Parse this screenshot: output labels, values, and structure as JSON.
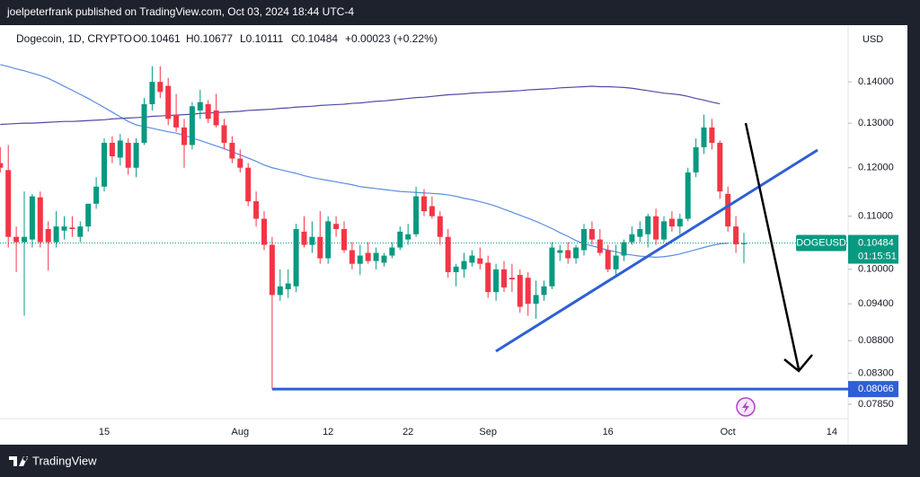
{
  "publisher": "joelpeterfrank published on TradingView.com, Oct 03, 2024 18:44 UTC-4",
  "brand": "TradingView",
  "chart_data": {
    "type": "candlestick",
    "legend": {
      "symbol": "Dogecoin, 1D, CRYPTO",
      "open": "O0.10461",
      "high": "H0.10677",
      "low": "L0.10111",
      "close": "C0.10484",
      "change": "+0.00023 (+0.22%)"
    },
    "currency": "USD",
    "log_scale": true,
    "up_color": "#089981",
    "down_color": "#f23645",
    "categories": [
      null,
      null,
      null,
      null,
      null,
      null,
      null,
      null,
      null,
      null,
      null,
      null,
      null,
      "15",
      null,
      null,
      null,
      null,
      null,
      null,
      null,
      null,
      null,
      null,
      null,
      null,
      null,
      null,
      null,
      null,
      "Aug",
      null,
      null,
      null,
      null,
      null,
      null,
      null,
      null,
      null,
      null,
      "12",
      null,
      null,
      null,
      null,
      null,
      null,
      null,
      null,
      null,
      "22",
      null,
      null,
      null,
      null,
      null,
      null,
      null,
      null,
      null,
      "Sep",
      null,
      null,
      null,
      null,
      null,
      null,
      null,
      null,
      null,
      null,
      null,
      null,
      null,
      null,
      "16",
      null,
      null,
      null,
      null,
      null,
      null,
      null,
      null,
      null,
      null,
      null,
      null,
      null,
      null,
      "Oct",
      null,
      null,
      null,
      null,
      null,
      null,
      null,
      null,
      null,
      null,
      null,
      null,
      "14"
    ],
    "candles": [
      [
        0.121,
        0.1245,
        0.119,
        0.12
      ],
      [
        0.1195,
        0.125,
        0.104,
        0.106
      ],
      [
        0.106,
        0.108,
        0.0995,
        0.105
      ],
      [
        0.105,
        0.115,
        0.092,
        0.106
      ],
      [
        0.1055,
        0.1145,
        0.104,
        0.114
      ],
      [
        0.1138,
        0.115,
        0.104,
        0.105
      ],
      [
        0.1075,
        0.109,
        0.0998,
        0.105
      ],
      [
        0.105,
        0.111,
        0.104,
        0.108
      ],
      [
        0.1072,
        0.11,
        0.1055,
        0.108
      ],
      [
        0.1078,
        0.11,
        0.106,
        0.1075
      ],
      [
        0.106,
        0.109,
        0.105,
        0.108
      ],
      [
        0.108,
        0.112,
        0.107,
        0.1125
      ],
      [
        0.1125,
        0.118,
        0.1115,
        0.116
      ],
      [
        0.116,
        0.1265,
        0.115,
        0.1255
      ],
      [
        0.1255,
        0.127,
        0.121,
        0.1225
      ],
      [
        0.1222,
        0.1275,
        0.1205,
        0.126
      ],
      [
        0.1255,
        0.1265,
        0.1185,
        0.12
      ],
      [
        0.12,
        0.1265,
        0.118,
        0.1255
      ],
      [
        0.1255,
        0.136,
        0.125,
        0.1345
      ],
      [
        0.1345,
        0.144,
        0.133,
        0.14
      ],
      [
        0.14,
        0.144,
        0.136,
        0.1375
      ],
      [
        0.139,
        0.141,
        0.1295,
        0.131
      ],
      [
        0.132,
        0.137,
        0.128,
        0.129
      ],
      [
        0.129,
        0.131,
        0.12,
        0.125
      ],
      [
        0.125,
        0.135,
        0.124,
        0.134
      ],
      [
        0.133,
        0.138,
        0.131,
        0.135
      ],
      [
        0.1345,
        0.1355,
        0.13,
        0.131
      ],
      [
        0.133,
        0.137,
        0.129,
        0.1295
      ],
      [
        0.1295,
        0.131,
        0.124,
        0.1255
      ],
      [
        0.1255,
        0.127,
        0.121,
        0.122
      ],
      [
        0.122,
        0.124,
        0.119,
        0.12
      ],
      [
        0.12,
        0.121,
        0.112,
        0.113
      ],
      [
        0.113,
        0.115,
        0.108,
        0.1095
      ],
      [
        0.1095,
        0.111,
        0.1035,
        0.1045
      ],
      [
        0.1045,
        0.106,
        0.08066,
        0.0955
      ],
      [
        0.0955,
        0.1,
        0.0945,
        0.097
      ],
      [
        0.0965,
        0.1,
        0.095,
        0.0975
      ],
      [
        0.097,
        0.1085,
        0.096,
        0.1075
      ],
      [
        0.107,
        0.11,
        0.104,
        0.1045
      ],
      [
        0.1045,
        0.109,
        0.103,
        0.106
      ],
      [
        0.106,
        0.111,
        0.101,
        0.102
      ],
      [
        0.102,
        0.11,
        0.101,
        0.109
      ],
      [
        0.1085,
        0.11,
        0.106,
        0.1075
      ],
      [
        0.1075,
        0.109,
        0.103,
        0.1035
      ],
      [
        0.1035,
        0.105,
        0.1,
        0.101
      ],
      [
        0.101,
        0.1045,
        0.099,
        0.1025
      ],
      [
        0.103,
        0.105,
        0.101,
        0.1015
      ],
      [
        0.1015,
        0.104,
        0.1,
        0.103
      ],
      [
        0.1012,
        0.103,
        0.1005,
        0.1025
      ],
      [
        0.1025,
        0.105,
        0.102,
        0.104
      ],
      [
        0.104,
        0.108,
        0.1035,
        0.107
      ],
      [
        0.1055,
        0.1085,
        0.1045,
        0.1065
      ],
      [
        0.1065,
        0.116,
        0.106,
        0.114
      ],
      [
        0.114,
        0.1155,
        0.11,
        0.111
      ],
      [
        0.112,
        0.114,
        0.1095,
        0.11
      ],
      [
        0.11,
        0.111,
        0.1045,
        0.106
      ],
      [
        0.106,
        0.1075,
        0.0985,
        0.0995
      ],
      [
        0.0995,
        0.101,
        0.097,
        0.1005
      ],
      [
        0.1,
        0.103,
        0.0985,
        0.1015
      ],
      [
        0.1012,
        0.1035,
        0.1005,
        0.1025
      ],
      [
        0.102,
        0.104,
        0.1,
        0.101
      ],
      [
        0.1012,
        0.1025,
        0.095,
        0.096
      ],
      [
        0.096,
        0.101,
        0.0945,
        0.1
      ],
      [
        0.1,
        0.1015,
        0.096,
        0.0968
      ],
      [
        0.0985,
        0.101,
        0.096,
        0.0982
      ],
      [
        0.099,
        0.1,
        0.0925,
        0.0935
      ],
      [
        0.0985,
        0.0995,
        0.092,
        0.094
      ],
      [
        0.094,
        0.098,
        0.0915,
        0.0955
      ],
      [
        0.0955,
        0.098,
        0.0945,
        0.097
      ],
      [
        0.097,
        0.105,
        0.0965,
        0.104
      ],
      [
        0.103,
        0.1045,
        0.1015,
        0.1035
      ],
      [
        0.1035,
        0.105,
        0.101,
        0.102
      ],
      [
        0.102,
        0.1045,
        0.101,
        0.104
      ],
      [
        0.1035,
        0.1085,
        0.1025,
        0.1075
      ],
      [
        0.1075,
        0.109,
        0.1045,
        0.1055
      ],
      [
        0.1055,
        0.1075,
        0.1025,
        0.103
      ],
      [
        0.1035,
        0.1045,
        0.0995,
        0.1
      ],
      [
        0.1,
        0.1045,
        0.099,
        0.1025
      ],
      [
        0.1025,
        0.1055,
        0.1015,
        0.105
      ],
      [
        0.105,
        0.108,
        0.1045,
        0.1065
      ],
      [
        0.106,
        0.109,
        0.105,
        0.1075
      ],
      [
        0.1065,
        0.1105,
        0.104,
        0.11
      ],
      [
        0.11,
        0.1115,
        0.1045,
        0.1055
      ],
      [
        0.1055,
        0.11,
        0.105,
        0.109
      ],
      [
        0.1095,
        0.111,
        0.107,
        0.108
      ],
      [
        0.108,
        0.1105,
        0.1065,
        0.1095
      ],
      [
        0.1095,
        0.12,
        0.109,
        0.119
      ],
      [
        0.119,
        0.1265,
        0.118,
        0.1245
      ],
      [
        0.1245,
        0.132,
        0.123,
        0.129
      ],
      [
        0.129,
        0.131,
        0.124,
        0.1255
      ],
      [
        0.1255,
        0.126,
        0.1135,
        0.115
      ],
      [
        0.1145,
        0.116,
        0.107,
        0.108
      ],
      [
        0.108,
        0.11,
        0.103,
        0.1046
      ],
      [
        0.10461,
        0.10677,
        0.10111,
        0.10484
      ],
      null,
      null,
      null,
      null,
      null,
      null,
      null,
      null,
      null,
      null,
      null
    ],
    "series": [
      {
        "color": "#5a8de0",
        "values": [
          0.1444,
          0.1439,
          0.1433,
          0.1428,
          0.1422,
          0.1416,
          0.1409,
          0.1399,
          0.1389,
          0.1379,
          0.1369,
          0.1359,
          0.1348,
          0.1337,
          0.1326,
          0.1315,
          0.1304,
          0.1296,
          0.1292,
          0.1288,
          0.1284,
          0.128,
          0.1277,
          0.1272,
          0.1266,
          0.126,
          0.1254,
          0.1248,
          0.1242,
          0.1235,
          0.1228,
          0.1221,
          0.1214,
          0.1206,
          0.12,
          0.1196,
          0.1192,
          0.1188,
          0.1183,
          0.1179,
          0.1176,
          0.1173,
          0.117,
          0.1167,
          0.1164,
          0.116,
          0.1158,
          0.1156,
          0.1154,
          0.1152,
          0.115,
          0.1149,
          0.1148,
          0.1147,
          0.1146,
          0.1145,
          0.1143,
          0.114,
          0.1136,
          0.1133,
          0.1129,
          0.1125,
          0.112,
          0.1114,
          0.1108,
          0.1102,
          0.1096,
          0.109,
          0.1083,
          0.1076,
          0.1068,
          0.1061,
          0.1053,
          0.1047,
          0.1043,
          0.1039,
          0.1035,
          0.1032,
          0.1028,
          0.1026,
          0.1024,
          0.1023,
          0.1022,
          0.1023,
          0.1025,
          0.1028,
          0.1032,
          0.1036,
          0.104,
          0.1044,
          0.1047,
          0.1048,
          null,
          null,
          null,
          null,
          null,
          null,
          null,
          null,
          null,
          null,
          null,
          null,
          null
        ]
      },
      {
        "color": "#4c4ba6",
        "values": [
          0.1297,
          0.1298,
          0.1299,
          0.13,
          0.13,
          0.1301,
          0.1302,
          0.1303,
          0.1304,
          0.1304,
          0.1305,
          0.1306,
          0.1307,
          0.1308,
          0.131,
          0.1311,
          0.1312,
          0.1313,
          0.1314,
          0.1316,
          0.1317,
          0.1318,
          0.1319,
          0.132,
          0.1321,
          0.1323,
          0.1324,
          0.1325,
          0.1326,
          0.1327,
          0.1328,
          0.133,
          0.1331,
          0.1332,
          0.1333,
          0.1335,
          0.1336,
          0.1338,
          0.1339,
          0.134,
          0.1342,
          0.1343,
          0.1344,
          0.1345,
          0.1347,
          0.1348,
          0.135,
          0.1352,
          0.1353,
          0.1355,
          0.1357,
          0.1359,
          0.1361,
          0.1362,
          0.1364,
          0.1366,
          0.1368,
          0.1369,
          0.137,
          0.1372,
          0.1373,
          0.1374,
          0.1375,
          0.1376,
          0.1377,
          0.1378,
          0.138,
          0.1381,
          0.1382,
          0.1383,
          0.1385,
          0.1386,
          0.1387,
          0.1388,
          0.1389,
          0.1388,
          0.1388,
          0.1387,
          0.1386,
          0.1384,
          0.1381,
          0.1378,
          0.1375,
          0.1372,
          0.137,
          0.1368,
          0.1364,
          0.1359,
          0.1355,
          0.135,
          0.1346,
          null,
          null,
          null,
          null,
          null,
          null,
          null,
          null,
          null,
          null,
          null,
          null,
          null,
          null
        ]
      }
    ],
    "price_line": {
      "label": "DOGEUSD",
      "value": 0.10484,
      "countdown": "01:15:51",
      "color": "#089981"
    },
    "level_line": {
      "value": 0.08066,
      "color": "#2f5fd6",
      "start": 34
    },
    "ylim": [
      0.0765,
      0.155
    ],
    "yticks": [
      {
        "value": 0.14,
        "label": "0.14000"
      },
      {
        "value": 0.13,
        "label": "0.13000"
      },
      {
        "value": 0.12,
        "label": "0.12000"
      },
      {
        "value": 0.11,
        "label": "0.11000"
      },
      {
        "value": 0.1,
        "label": "0.10000"
      },
      {
        "value": 0.094,
        "label": "0.09400"
      },
      {
        "value": 0.088,
        "label": "0.08800"
      },
      {
        "value": 0.083,
        "label": "0.08300"
      },
      {
        "value": 0.0785,
        "label": "0.07850"
      }
    ]
  }
}
